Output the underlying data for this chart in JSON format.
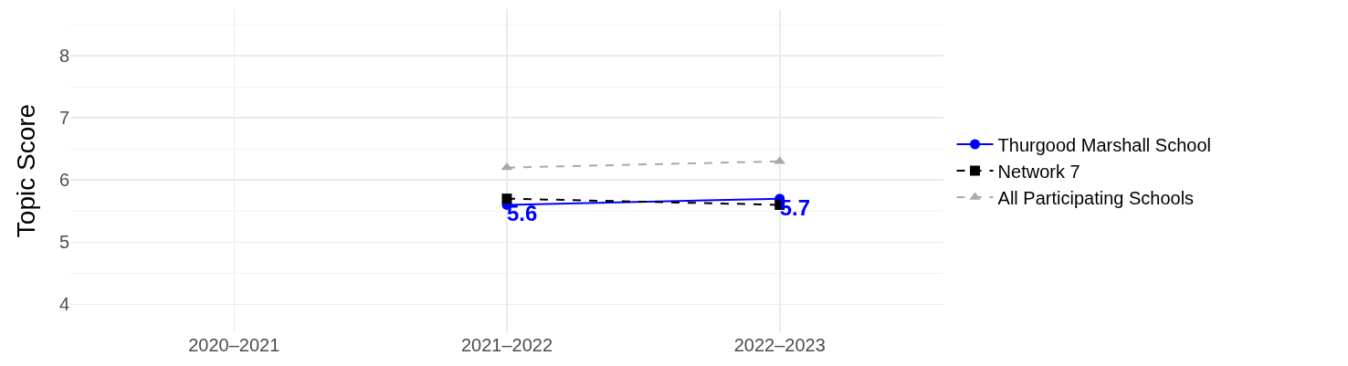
{
  "chart_data": {
    "type": "line",
    "ylabel": "Topic Score",
    "categories": [
      "2020–2021",
      "2021–2022",
      "2022–2023"
    ],
    "ylim": [
      3.55,
      8.75
    ],
    "yticks": [
      4,
      5,
      6,
      7,
      8
    ],
    "grid": true,
    "legend": "right",
    "series": [
      {
        "name": "Thurgood Marshall School",
        "color": "#0000ff",
        "values": [
          null,
          5.6,
          5.7
        ],
        "value_labels": [
          null,
          "5.6",
          "5.7"
        ],
        "marker": "circle",
        "line_style": "solid"
      },
      {
        "name": "Network 7",
        "color": "#000000",
        "values": [
          null,
          5.7,
          5.6
        ],
        "marker": "square",
        "line_style": "dashed"
      },
      {
        "name": "All Participating Schools",
        "color": "#a9a9a9",
        "values": [
          null,
          6.2,
          6.3
        ],
        "marker": "triangle",
        "line_style": "dashed"
      }
    ]
  }
}
